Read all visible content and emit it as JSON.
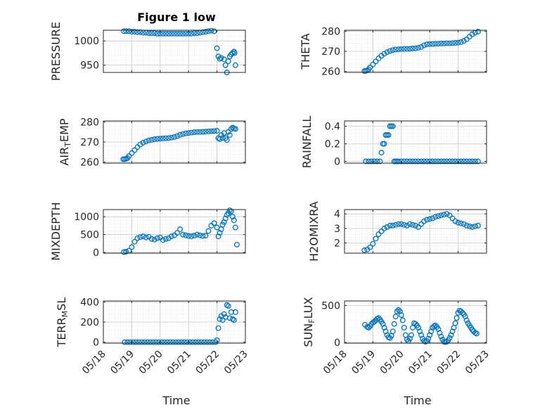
{
  "title": "Figure 1 low",
  "marker_color": "#0072BD",
  "chart_data": [
    {
      "id": "pressure",
      "type": "scatter",
      "ylabel": "PRESSURE",
      "title": "Figure 1 low",
      "xlim": [
        "05/18",
        "05/23"
      ],
      "ylim": [
        935,
        1022
      ],
      "yticks": [
        950,
        1000
      ],
      "xticks": [
        "05/18",
        "05/19",
        "05/20",
        "05/21",
        "05/22",
        "05/23"
      ],
      "x": [
        0.72,
        0.8,
        0.9,
        1.0,
        1.1,
        1.2,
        1.3,
        1.4,
        1.5,
        1.6,
        1.7,
        1.8,
        1.9,
        2.0,
        2.1,
        2.2,
        2.3,
        2.4,
        2.5,
        2.6,
        2.7,
        2.8,
        2.9,
        3.0,
        3.1,
        3.2,
        3.3,
        3.4,
        3.5,
        3.6,
        3.7,
        3.8,
        3.9,
        4.0,
        4.05,
        4.1,
        4.15,
        4.25,
        4.3,
        4.35,
        4.4,
        4.45,
        4.5,
        4.55,
        4.6,
        4.62,
        4.65
      ],
      "y": [
        1020,
        1020,
        1020,
        1019,
        1019,
        1018,
        1018,
        1017,
        1017,
        1016,
        1016,
        1016,
        1015,
        1015,
        1015,
        1015,
        1015,
        1015,
        1015,
        1015,
        1015,
        1015,
        1015,
        1015,
        1015,
        1016,
        1016,
        1017,
        1018,
        1019,
        1020,
        1021,
        1020,
        985,
        968,
        963,
        965,
        962,
        950,
        935,
        958,
        968,
        972,
        975,
        978,
        975,
        950
      ]
    },
    {
      "id": "theta",
      "type": "scatter",
      "ylabel": "THETA",
      "xlim": [
        "05/18",
        "05/23"
      ],
      "ylim": [
        259.5,
        280.5
      ],
      "yticks": [
        260,
        270,
        280
      ],
      "xticks": [
        "05/18",
        "05/19",
        "05/20",
        "05/21",
        "05/22",
        "05/23"
      ],
      "x": [
        0.7,
        0.75,
        0.8,
        0.85,
        0.9,
        1.0,
        1.1,
        1.2,
        1.3,
        1.4,
        1.5,
        1.6,
        1.7,
        1.8,
        1.9,
        2.0,
        2.1,
        2.2,
        2.3,
        2.4,
        2.5,
        2.6,
        2.7,
        2.8,
        2.9,
        3.0,
        3.1,
        3.2,
        3.3,
        3.4,
        3.5,
        3.6,
        3.7,
        3.8,
        3.9,
        4.0,
        4.1,
        4.2,
        4.3,
        4.4,
        4.5,
        4.6,
        4.7
      ],
      "y": [
        260.2,
        260.3,
        260.5,
        261.0,
        262.0,
        263.5,
        265.0,
        266.5,
        267.8,
        268.8,
        269.6,
        270.2,
        270.6,
        270.9,
        271.0,
        271.1,
        271.2,
        271.2,
        271.3,
        271.4,
        271.5,
        271.8,
        272.2,
        273.0,
        273.5,
        273.6,
        273.7,
        273.8,
        273.8,
        273.9,
        273.9,
        274.0,
        274.0,
        274.1,
        274.2,
        274.3,
        274.6,
        275.2,
        276.0,
        277.3,
        278.5,
        279.3,
        279.8
      ]
    },
    {
      "id": "airtemp",
      "type": "scatter",
      "ylabel": "AIR_TEMP",
      "ylabel_main": "AIR",
      "ylabel_sub": "T",
      "ylabel_rest": "EMP",
      "xlim": [
        "05/18",
        "05/23"
      ],
      "ylim": [
        259.5,
        280.5
      ],
      "yticks": [
        260,
        270,
        280
      ],
      "xticks": [
        "05/18",
        "05/19",
        "05/20",
        "05/21",
        "05/22",
        "05/23"
      ],
      "x": [
        0.7,
        0.75,
        0.8,
        0.85,
        0.9,
        1.0,
        1.1,
        1.2,
        1.3,
        1.4,
        1.5,
        1.6,
        1.7,
        1.8,
        1.9,
        2.0,
        2.1,
        2.2,
        2.3,
        2.4,
        2.5,
        2.6,
        2.7,
        2.8,
        2.9,
        3.0,
        3.1,
        3.2,
        3.3,
        3.4,
        3.5,
        3.6,
        3.7,
        3.8,
        3.9,
        4.0,
        4.05,
        4.1,
        4.15,
        4.2,
        4.25,
        4.3,
        4.35,
        4.4,
        4.45,
        4.5,
        4.55,
        4.6,
        4.65
      ],
      "y": [
        261.5,
        261.5,
        261.7,
        262.0,
        263.0,
        264.5,
        266.0,
        267.5,
        268.8,
        269.7,
        270.3,
        270.8,
        271.1,
        271.4,
        271.6,
        271.7,
        271.8,
        271.9,
        272.0,
        272.2,
        272.5,
        273.0,
        273.6,
        274.0,
        274.3,
        274.5,
        274.7,
        274.9,
        275.0,
        275.0,
        275.1,
        275.2,
        275.3,
        275.4,
        275.5,
        275.6,
        272.0,
        271.5,
        273.5,
        272.0,
        274.5,
        272.0,
        271.0,
        275.0,
        273.5,
        276.5,
        277.2,
        276.8,
        276.5
      ]
    },
    {
      "id": "rainfall",
      "type": "scatter",
      "ylabel": "RAINFALL",
      "xlim": [
        "05/18",
        "05/23"
      ],
      "ylim": [
        -0.02,
        0.46
      ],
      "yticks": [
        0,
        0.2,
        0.4
      ],
      "xticks": [
        "05/18",
        "05/19",
        "05/20",
        "05/21",
        "05/22",
        "05/23"
      ],
      "x": [
        0.75,
        0.85,
        0.95,
        1.05,
        1.15,
        1.25,
        1.3,
        1.35,
        1.4,
        1.45,
        1.5,
        1.55,
        1.6,
        1.65,
        1.7,
        1.75,
        1.8,
        1.85,
        1.9,
        2.0,
        2.1,
        2.2,
        2.3,
        2.4,
        2.5,
        2.6,
        2.7,
        2.8,
        2.9,
        3.0,
        3.1,
        3.2,
        3.3,
        3.4,
        3.5,
        3.6,
        3.7,
        3.8,
        3.9,
        4.0,
        4.1,
        4.2,
        4.3,
        4.4,
        4.5,
        4.6,
        4.7
      ],
      "y": [
        0,
        0,
        0,
        0,
        0,
        0,
        0.1,
        0.2,
        0.2,
        0.3,
        0.3,
        0.3,
        0.4,
        0.4,
        0.4,
        0,
        0,
        0,
        0,
        0,
        0,
        0,
        0,
        0,
        0,
        0,
        0,
        0,
        0,
        0,
        0,
        0,
        0,
        0,
        0,
        0,
        0,
        0,
        0,
        0,
        0,
        0,
        0,
        0,
        0,
        0,
        0
      ]
    },
    {
      "id": "mixdepth",
      "type": "scatter",
      "ylabel": "MIXDEPTH",
      "xlim": [
        "05/18",
        "05/23"
      ],
      "ylim": [
        -20,
        1200
      ],
      "yticks": [
        0,
        500,
        1000
      ],
      "xticks": [
        "05/18",
        "05/19",
        "05/20",
        "05/21",
        "05/22",
        "05/23"
      ],
      "x": [
        0.72,
        0.8,
        0.9,
        1.0,
        1.1,
        1.2,
        1.3,
        1.4,
        1.5,
        1.6,
        1.7,
        1.8,
        1.9,
        2.0,
        2.1,
        2.2,
        2.3,
        2.4,
        2.5,
        2.6,
        2.7,
        2.8,
        2.9,
        3.0,
        3.1,
        3.2,
        3.3,
        3.4,
        3.5,
        3.6,
        3.7,
        3.8,
        3.9,
        4.0,
        4.05,
        4.1,
        4.15,
        4.2,
        4.25,
        4.3,
        4.35,
        4.4,
        4.45,
        4.5,
        4.55,
        4.6,
        4.65,
        4.7
      ],
      "y": [
        10,
        20,
        50,
        150,
        300,
        400,
        430,
        450,
        420,
        440,
        380,
        360,
        400,
        420,
        350,
        380,
        400,
        450,
        480,
        550,
        650,
        500,
        480,
        460,
        450,
        470,
        500,
        480,
        460,
        470,
        600,
        750,
        820,
        700,
        450,
        550,
        650,
        780,
        850,
        950,
        1050,
        1100,
        1180,
        1150,
        1000,
        900,
        700,
        220
      ]
    },
    {
      "id": "h2omixra",
      "type": "scatter",
      "ylabel": "H2OMIXRA",
      "xlim": [
        "05/18",
        "05/23"
      ],
      "ylim": [
        1.3,
        4.3
      ],
      "yticks": [
        2,
        3,
        4
      ],
      "xticks": [
        "05/18",
        "05/19",
        "05/20",
        "05/21",
        "05/22",
        "05/23"
      ],
      "x": [
        0.7,
        0.8,
        0.9,
        1.0,
        1.1,
        1.2,
        1.3,
        1.4,
        1.5,
        1.6,
        1.7,
        1.8,
        1.9,
        2.0,
        2.1,
        2.2,
        2.3,
        2.4,
        2.5,
        2.6,
        2.7,
        2.8,
        2.9,
        3.0,
        3.1,
        3.2,
        3.3,
        3.4,
        3.5,
        3.6,
        3.7,
        3.8,
        3.9,
        4.0,
        4.1,
        4.2,
        4.3,
        4.4,
        4.5,
        4.6,
        4.7
      ],
      "y": [
        1.5,
        1.55,
        1.7,
        1.95,
        2.3,
        2.6,
        2.8,
        3.0,
        3.1,
        3.2,
        3.2,
        3.25,
        3.3,
        3.3,
        3.25,
        3.2,
        3.3,
        3.25,
        3.2,
        3.1,
        3.3,
        3.5,
        3.6,
        3.65,
        3.7,
        3.8,
        3.85,
        3.9,
        3.95,
        4.0,
        3.9,
        3.7,
        3.5,
        3.4,
        3.35,
        3.3,
        3.2,
        3.15,
        3.1,
        3.15,
        3.2
      ]
    },
    {
      "id": "terrmsl",
      "type": "scatter",
      "ylabel": "TERR_MSL",
      "ylabel_main": "TERR",
      "ylabel_sub": "M",
      "ylabel_rest": "SL",
      "xlim": [
        "05/18",
        "05/23"
      ],
      "ylim": [
        -10,
        410
      ],
      "yticks": [
        0,
        200,
        400
      ],
      "xticks": [
        "05/18",
        "05/19",
        "05/20",
        "05/21",
        "05/22",
        "05/23"
      ],
      "x": [
        0.75,
        0.85,
        0.95,
        1.05,
        1.15,
        1.25,
        1.35,
        1.45,
        1.55,
        1.65,
        1.75,
        1.85,
        1.95,
        2.05,
        2.15,
        2.25,
        2.35,
        2.45,
        2.55,
        2.65,
        2.75,
        2.85,
        2.95,
        3.05,
        3.15,
        3.25,
        3.35,
        3.45,
        3.55,
        3.65,
        3.75,
        3.85,
        3.95,
        4.0,
        4.05,
        4.1,
        4.15,
        4.2,
        4.25,
        4.3,
        4.35,
        4.4,
        4.45,
        4.5,
        4.55,
        4.6,
        4.65
      ],
      "y": [
        0,
        0,
        0,
        0,
        0,
        0,
        0,
        0,
        0,
        0,
        0,
        0,
        0,
        0,
        0,
        0,
        0,
        0,
        0,
        0,
        0,
        0,
        0,
        0,
        0,
        0,
        0,
        0,
        0,
        0,
        0,
        0,
        0,
        20,
        140,
        230,
        260,
        220,
        280,
        250,
        370,
        360,
        240,
        300,
        230,
        220,
        300
      ]
    },
    {
      "id": "sunflux",
      "type": "scatter",
      "ylabel": "SUN_FLUX",
      "ylabel_main": "SUN",
      "ylabel_sub": "F",
      "ylabel_rest": "LUX",
      "xlim": [
        "05/18",
        "05/23"
      ],
      "ylim": [
        -10,
        560
      ],
      "yticks": [
        0,
        500
      ],
      "xticks": [
        "05/18",
        "05/19",
        "05/20",
        "05/21",
        "05/22",
        "05/23"
      ],
      "x": [
        0.72,
        0.8,
        0.85,
        0.9,
        0.95,
        1.0,
        1.05,
        1.1,
        1.15,
        1.2,
        1.25,
        1.3,
        1.35,
        1.4,
        1.45,
        1.5,
        1.55,
        1.6,
        1.65,
        1.7,
        1.75,
        1.8,
        1.85,
        1.9,
        1.95,
        2.0,
        2.05,
        2.1,
        2.15,
        2.2,
        2.25,
        2.3,
        2.35,
        2.4,
        2.45,
        2.5,
        2.55,
        2.6,
        2.65,
        2.7,
        2.75,
        2.8,
        2.85,
        2.9,
        2.95,
        3.0,
        3.05,
        3.1,
        3.15,
        3.2,
        3.25,
        3.3,
        3.35,
        3.4,
        3.45,
        3.5,
        3.55,
        3.6,
        3.65,
        3.7,
        3.75,
        3.8,
        3.85,
        3.9,
        3.95,
        4.0,
        4.05,
        4.1,
        4.15,
        4.2,
        4.25,
        4.3,
        4.35,
        4.4,
        4.45,
        4.5,
        4.55,
        4.6,
        4.65
      ],
      "y": [
        240,
        210,
        200,
        220,
        250,
        270,
        280,
        300,
        320,
        330,
        310,
        280,
        250,
        200,
        150,
        100,
        70,
        60,
        90,
        150,
        250,
        350,
        420,
        440,
        420,
        370,
        300,
        200,
        100,
        40,
        20,
        50,
        100,
        200,
        260,
        250,
        230,
        200,
        150,
        100,
        50,
        20,
        10,
        20,
        50,
        100,
        150,
        200,
        220,
        230,
        210,
        180,
        130,
        80,
        40,
        10,
        5,
        10,
        30,
        60,
        100,
        150,
        200,
        260,
        330,
        400,
        430,
        420,
        400,
        380,
        350,
        300,
        260,
        230,
        200,
        170,
        150,
        130,
        120
      ]
    }
  ],
  "panels": [
    {
      "id": "pressure",
      "yticks_label": [
        "950",
        "1000"
      ]
    },
    {
      "id": "theta",
      "yticks_label": [
        "260",
        "270",
        "280"
      ]
    },
    {
      "id": "airtemp",
      "yticks_label": [
        "260",
        "270",
        "280"
      ]
    },
    {
      "id": "rainfall",
      "yticks_label": [
        "0",
        "0.2",
        "0.4"
      ]
    },
    {
      "id": "mixdepth",
      "yticks_label": [
        "0",
        "500",
        "1000"
      ]
    },
    {
      "id": "h2omixra",
      "yticks_label": [
        "2",
        "3",
        "4"
      ]
    },
    {
      "id": "terrmsl",
      "yticks_label": [
        "0",
        "200",
        "400"
      ]
    },
    {
      "id": "sunflux",
      "yticks_label": [
        "0",
        "500"
      ]
    }
  ],
  "xlabel": "Time"
}
